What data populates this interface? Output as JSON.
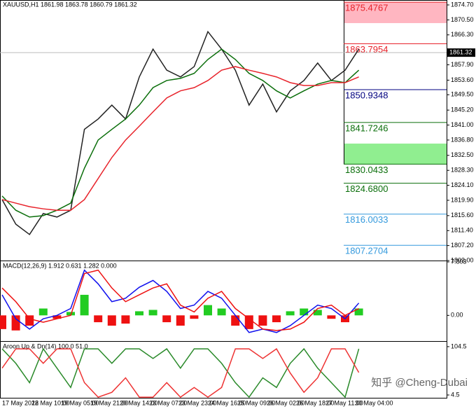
{
  "chart_data": [
    {
      "type": "line",
      "title": "XAUUSD,H1 1861.98 1863.78 1860.79 1861.32",
      "ylim": [
        1803.0,
        1876.08
      ],
      "yticks": [
        {
          "value": 1874.7,
          "label": "1874.70"
        },
        {
          "value": 1870.5,
          "label": "1870.50"
        },
        {
          "value": 1866.3,
          "label": "1866.30"
        },
        {
          "value": 1857.9,
          "label": "1857.90"
        },
        {
          "value": 1853.6,
          "label": "1853.60"
        },
        {
          "value": 1849.5,
          "label": "1849.50"
        },
        {
          "value": 1845.2,
          "label": "1845.20"
        },
        {
          "value": 1841.0,
          "label": "1841.00"
        },
        {
          "value": 1836.8,
          "label": "1836.80"
        },
        {
          "value": 1832.5,
          "label": "1832.50"
        },
        {
          "value": 1828.3,
          "label": "1828.30"
        },
        {
          "value": 1824.1,
          "label": "1824.10"
        },
        {
          "value": 1819.9,
          "label": "1819.90"
        },
        {
          "value": 1815.6,
          "label": "1815.60"
        },
        {
          "value": 1811.4,
          "label": "1811.40"
        },
        {
          "value": 1807.2,
          "label": "1807.20"
        },
        {
          "value": 1803.0,
          "label": "1803.00"
        }
      ],
      "current_price": 1861.32,
      "series": [
        {
          "color": "#222222",
          "values": [
            1820.1,
            1813.2,
            1810.3,
            1816.2,
            1815.2,
            1817.1,
            1839.8,
            1842.7,
            1846.6,
            1842.7,
            1854.5,
            1862.3,
            1856.4,
            1854.5,
            1857.4,
            1867.2,
            1862.3,
            1856.4,
            1846.6,
            1852.5,
            1844.7,
            1850.6,
            1853.5,
            1858.4,
            1853.5,
            1856.4,
            1862.3
          ]
        },
        {
          "color": "#0a6e0a",
          "values": [
            1821.1,
            1817.1,
            1815.2,
            1815.6,
            1817.1,
            1819.1,
            1828.9,
            1836.8,
            1839.8,
            1842.7,
            1846.6,
            1851.5,
            1853.5,
            1854.1,
            1855.5,
            1859.4,
            1862.3,
            1859.4,
            1855.5,
            1853.5,
            1850.6,
            1848.6,
            1850.6,
            1852.5,
            1853.5,
            1852.9,
            1856.4
          ]
        },
        {
          "color": "#e8232b",
          "values": [
            1820.1,
            1819.1,
            1818.1,
            1817.5,
            1817.1,
            1817.1,
            1820.1,
            1826.0,
            1831.9,
            1836.8,
            1840.7,
            1844.7,
            1848.6,
            1850.6,
            1851.5,
            1853.5,
            1856.4,
            1857.4,
            1856.4,
            1855.5,
            1854.5,
            1852.9,
            1852.1,
            1852.1,
            1852.9,
            1852.9,
            1854.5
          ]
        }
      ],
      "zones": [
        {
          "from": 1869.6,
          "to": 1875.4767,
          "color": "#ffb6c1"
        },
        {
          "from": 1830.0433,
          "to": 1835.8,
          "color": "#90ee90"
        }
      ],
      "levels": [
        {
          "value": 1875.4767,
          "color": "#e8232b"
        },
        {
          "value": 1863.7954,
          "color": "#e8232b"
        },
        {
          "value": 1850.9348,
          "color": "#000080"
        },
        {
          "value": 1841.7246,
          "color": "#0a6e0a"
        },
        {
          "value": 1830.0433,
          "color": "#0a6e0a"
        },
        {
          "value": 1824.68,
          "label": "1824.6800",
          "color": "#0a6e0a"
        },
        {
          "value": 1816.0033,
          "color": "#3399dd"
        },
        {
          "value": 1807.2704,
          "color": "#3399dd"
        }
      ]
    },
    {
      "type": "combo",
      "title": "MACD(12,26,9) 1.912 0.631 1.282 0.000",
      "ylim": [
        -3.75,
        7.9
      ],
      "yticks": [
        7.803,
        {
          "value": 0,
          "label": "0.00"
        }
      ],
      "series": [
        {
          "style": "histogram",
          "color": "#22cc22",
          "negative_color": "#ee1111",
          "values": [
            -2,
            -2.2,
            -1.5,
            1.0,
            -0.5,
            0.5,
            3.0,
            -1.0,
            -1.5,
            -1.2,
            0.6,
            0.8,
            -1.0,
            -1.5,
            -0.5,
            1.5,
            1.0,
            -1.5,
            -2.0,
            -1.5,
            -1.0,
            0.6,
            1.0,
            0.8,
            -0.5,
            -1.0,
            1.0
          ]
        },
        {
          "style": "line",
          "color": "#1010ee",
          "values": [
            3.0,
            -0.5,
            -2.0,
            -0.5,
            0,
            1.0,
            6.6,
            4.6,
            2.0,
            2.5,
            4.1,
            5.1,
            3.5,
            1.0,
            1.5,
            3.5,
            2.5,
            0,
            -2.5,
            -2.0,
            -2.5,
            -1.5,
            0,
            1.5,
            1.0,
            -0.5,
            1.8
          ]
        },
        {
          "style": "line",
          "color": "#ee1111",
          "values": [
            4.0,
            2.0,
            -0.5,
            -1.0,
            -0.5,
            0,
            6.1,
            6.6,
            4.0,
            2.0,
            3.0,
            4.0,
            4.6,
            1.5,
            0.5,
            2.5,
            3.5,
            1.0,
            -0.5,
            -2.0,
            -2.2,
            -2.0,
            -1.0,
            1.0,
            1.5,
            0,
            1.0
          ]
        }
      ]
    },
    {
      "type": "line",
      "title": "Aroon Up & Dn(14) 100.0 51.0",
      "ylim": [
        -1.3,
        114.6
      ],
      "yticks": [
        104.5,
        4.5
      ],
      "series": [
        {
          "color": "#2a8a2a",
          "values": [
            100,
            70,
            30,
            100,
            60,
            20,
            100,
            100,
            70,
            100,
            100,
            80,
            100,
            60,
            100,
            100,
            70,
            30,
            0,
            40,
            20,
            70,
            100,
            60,
            30,
            0,
            100
          ]
        },
        {
          "color": "#ee3333",
          "values": [
            60,
            100,
            100,
            70,
            100,
            100,
            30,
            0,
            10,
            40,
            0,
            0,
            30,
            0,
            20,
            0,
            20,
            100,
            100,
            80,
            100,
            50,
            10,
            40,
            100,
            100,
            51
          ]
        }
      ],
      "x_labels": [
        "17 May 2022",
        "18 May 10:00",
        "19 May 05:00",
        "19 May 21:00",
        "20 May 14:00",
        "23 May 07:00",
        "23 May 23:00",
        "24 May 16:00",
        "25 May 09:00",
        "26 May 02:00",
        "26 May 18:00",
        "27 May 11:00",
        "30 May 04:00"
      ]
    }
  ],
  "watermark": "知乎 @Cheng-Dubai"
}
